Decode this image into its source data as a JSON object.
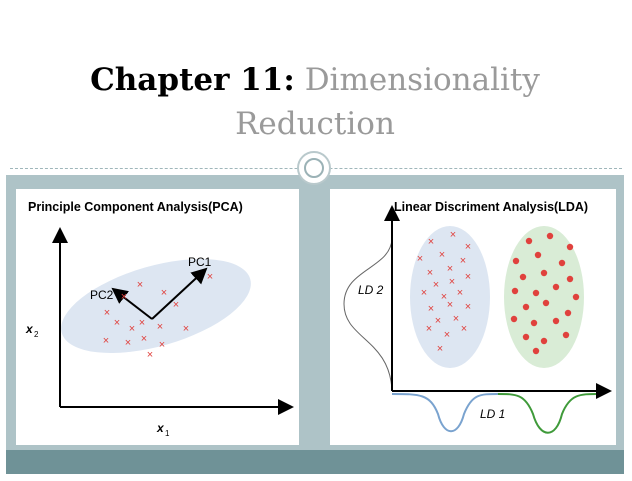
{
  "title": {
    "bold": "Chapter 11:",
    "light_line1": "Dimensionality",
    "light_line2": "Reduction"
  },
  "pca": {
    "heading": "Principle Component Analysis(PCA)",
    "pc1_label": "PC1",
    "pc2_label": "PC2",
    "x_axis_label": "x",
    "x_axis_sub": "1",
    "y_axis_label": "x",
    "y_axis_sub": "2"
  },
  "lda": {
    "heading": "Linear Discriment Analysis(LDA)",
    "ld1_label": "LD 1",
    "ld2_label": "LD 2"
  },
  "colors": {
    "marker_red": "#e0413d",
    "cluster_blue": "#dde6f2",
    "cluster_green": "#d9ecd6",
    "curve_blue": "#7aa3cf",
    "curve_green": "#3f9a3a",
    "band": "#aec3c7",
    "footer": "#6f9297"
  }
}
